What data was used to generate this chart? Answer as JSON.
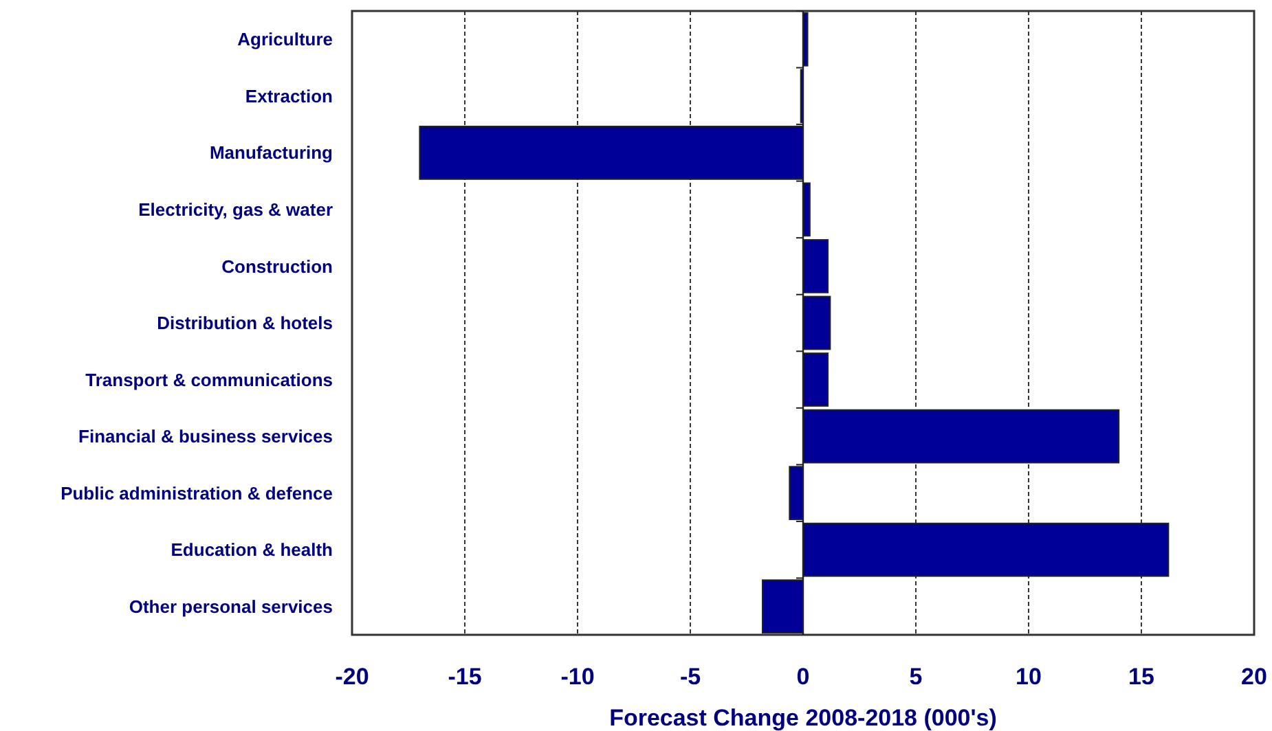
{
  "chart_data": {
    "type": "bar",
    "orientation": "horizontal",
    "xlabel": "Forecast Change 2008-2018 (000's)",
    "categories": [
      "Agriculture",
      "Extraction",
      "Manufacturing",
      "Electricity, gas & water",
      "Construction",
      "Distribution & hotels",
      "Transport & communications",
      "Financial & business services",
      "Public administration  & defence",
      "Education & health",
      "Other personal services"
    ],
    "values": [
      0.2,
      -0.1,
      -17.0,
      0.3,
      1.1,
      1.2,
      1.1,
      14.0,
      -0.6,
      16.2,
      -1.8
    ],
    "color": "#000099",
    "xlim": [
      -20,
      20
    ],
    "xticks": [
      -20,
      -15,
      -10,
      -5,
      0,
      5,
      10,
      15,
      20
    ],
    "grid": "x"
  }
}
